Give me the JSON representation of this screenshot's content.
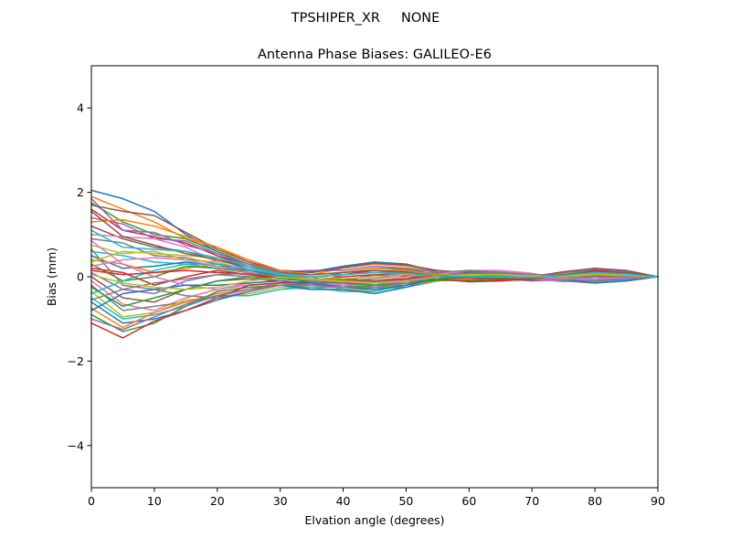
{
  "chart_data": {
    "type": "line",
    "suptitle": "TPSHIPER_XR     NONE",
    "title": "Antenna Phase Biases: GALILEO-E6",
    "xlabel": "Elvation angle (degrees)",
    "ylabel": "Bias (mm)",
    "xlim": [
      0,
      90
    ],
    "ylim": [
      -5,
      5
    ],
    "xticks": [
      0,
      10,
      20,
      30,
      40,
      50,
      60,
      70,
      80,
      90
    ],
    "yticks": [
      -4,
      -2,
      0,
      2,
      4
    ],
    "ytick_labels": [
      "−4",
      "−2",
      "0",
      "2",
      "4"
    ],
    "grid": false,
    "legend": "none",
    "colors": [
      "#1f77b4",
      "#ff7f0e",
      "#2ca02c",
      "#d62728",
      "#9467bd",
      "#8c564b",
      "#e377c2",
      "#7f7f7f",
      "#bcbd22",
      "#17becf"
    ],
    "x": [
      0,
      5,
      10,
      15,
      20,
      25,
      30,
      35,
      40,
      45,
      50,
      55,
      60,
      65,
      70,
      75,
      80,
      85,
      90
    ],
    "series": [
      {
        "values": [
          2.05,
          1.85,
          1.55,
          1.0,
          0.6,
          0.3,
          0.15,
          0.12,
          0.25,
          0.35,
          0.3,
          0.12,
          0.02,
          0.0,
          -0.05,
          0.05,
          0.15,
          0.1,
          0.0
        ]
      },
      {
        "values": [
          1.9,
          1.6,
          1.3,
          0.9,
          0.7,
          0.35,
          0.1,
          0.05,
          0.2,
          0.3,
          0.25,
          0.1,
          0.05,
          0.05,
          0.0,
          0.1,
          0.2,
          0.12,
          0.0
        ]
      },
      {
        "values": [
          1.75,
          1.3,
          1.0,
          0.9,
          0.6,
          0.3,
          0.05,
          -0.05,
          0.1,
          0.2,
          0.18,
          0.05,
          0.0,
          -0.02,
          -0.05,
          0.08,
          0.15,
          0.1,
          0.0
        ]
      },
      {
        "values": [
          1.6,
          1.1,
          0.95,
          0.8,
          0.5,
          0.25,
          0.05,
          0.0,
          0.05,
          0.15,
          0.12,
          0.05,
          0.08,
          0.05,
          0.0,
          -0.05,
          0.05,
          0.05,
          0.0
        ]
      },
      {
        "values": [
          1.4,
          1.25,
          0.9,
          0.85,
          0.55,
          0.3,
          0.1,
          -0.05,
          -0.1,
          0.05,
          0.08,
          0.02,
          0.1,
          0.1,
          0.05,
          0.0,
          0.1,
          0.05,
          0.0
        ]
      },
      {
        "values": [
          1.2,
          0.9,
          0.7,
          0.6,
          0.4,
          0.2,
          0.05,
          -0.05,
          -0.15,
          -0.1,
          0.0,
          0.05,
          0.12,
          0.1,
          0.05,
          -0.05,
          -0.05,
          0.0,
          0.0
        ]
      },
      {
        "values": [
          1.0,
          0.95,
          0.9,
          0.7,
          0.35,
          0.15,
          0.0,
          -0.1,
          -0.2,
          -0.15,
          -0.05,
          0.05,
          0.15,
          0.12,
          0.05,
          -0.08,
          -0.12,
          -0.05,
          0.0
        ]
      },
      {
        "values": [
          0.9,
          0.8,
          0.5,
          0.45,
          0.3,
          0.1,
          -0.05,
          -0.1,
          -0.25,
          -0.25,
          -0.15,
          0.0,
          0.1,
          0.08,
          0.0,
          -0.1,
          -0.15,
          -0.08,
          0.0
        ]
      },
      {
        "values": [
          0.75,
          0.55,
          0.6,
          0.4,
          0.35,
          0.15,
          0.05,
          -0.1,
          -0.3,
          -0.35,
          -0.2,
          -0.05,
          0.05,
          0.05,
          0.0,
          -0.08,
          -0.1,
          -0.05,
          0.0
        ]
      },
      {
        "values": [
          0.6,
          0.5,
          0.35,
          0.3,
          0.2,
          0.1,
          0.0,
          -0.12,
          -0.2,
          -0.3,
          -0.25,
          -0.1,
          0.0,
          0.05,
          0.02,
          -0.05,
          -0.08,
          -0.05,
          0.0
        ]
      },
      {
        "values": [
          0.5,
          0.2,
          0.25,
          0.35,
          0.25,
          0.15,
          0.02,
          -0.08,
          -0.15,
          -0.25,
          -0.2,
          -0.05,
          -0.05,
          0.0,
          0.0,
          0.05,
          0.05,
          0.02,
          0.0
        ]
      },
      {
        "values": [
          0.4,
          0.3,
          0.1,
          0.2,
          0.3,
          0.2,
          0.08,
          -0.05,
          -0.1,
          -0.2,
          -0.15,
          -0.05,
          -0.1,
          -0.05,
          0.0,
          0.08,
          0.1,
          0.05,
          0.0
        ]
      },
      {
        "values": [
          0.3,
          -0.1,
          0.0,
          0.25,
          0.2,
          0.1,
          0.0,
          -0.1,
          -0.05,
          -0.1,
          -0.1,
          0.0,
          -0.08,
          -0.1,
          -0.05,
          0.05,
          0.12,
          0.08,
          0.0
        ]
      },
      {
        "values": [
          0.2,
          0.1,
          -0.2,
          0.0,
          0.15,
          0.05,
          -0.05,
          -0.1,
          0.0,
          0.05,
          0.02,
          0.05,
          -0.05,
          -0.08,
          -0.08,
          0.0,
          0.15,
          0.1,
          0.0
        ]
      },
      {
        "values": [
          0.1,
          -0.3,
          -0.4,
          -0.1,
          0.05,
          0.0,
          -0.1,
          -0.15,
          0.05,
          0.1,
          0.1,
          0.08,
          0.0,
          -0.05,
          -0.1,
          -0.05,
          0.1,
          0.08,
          0.0
        ]
      },
      {
        "values": [
          0.0,
          -0.5,
          -0.6,
          -0.3,
          -0.1,
          -0.05,
          -0.1,
          -0.2,
          -0.05,
          0.0,
          0.05,
          0.1,
          0.05,
          0.0,
          -0.08,
          -0.1,
          0.05,
          0.05,
          0.0
        ]
      },
      {
        "values": [
          -0.1,
          -0.65,
          -0.8,
          -0.5,
          -0.3,
          -0.2,
          -0.15,
          -0.2,
          -0.15,
          -0.1,
          0.0,
          0.12,
          0.1,
          0.05,
          -0.05,
          -0.12,
          -0.05,
          0.0,
          0.0
        ]
      },
      {
        "values": [
          -0.2,
          -0.8,
          -0.7,
          -0.6,
          -0.45,
          -0.3,
          -0.2,
          -0.25,
          -0.25,
          -0.2,
          -0.05,
          0.1,
          0.12,
          0.08,
          0.0,
          -0.1,
          -0.15,
          -0.05,
          0.0
        ]
      },
      {
        "values": [
          -0.35,
          -0.95,
          -0.85,
          -0.55,
          -0.5,
          -0.4,
          -0.25,
          -0.3,
          -0.3,
          -0.3,
          -0.15,
          0.05,
          0.08,
          0.05,
          0.02,
          -0.05,
          -0.15,
          -0.1,
          0.0
        ]
      },
      {
        "values": [
          -0.5,
          -1.0,
          -0.9,
          -0.7,
          -0.45,
          -0.45,
          -0.3,
          -0.25,
          -0.35,
          -0.35,
          -0.2,
          0.0,
          0.05,
          0.05,
          0.05,
          0.0,
          -0.1,
          -0.08,
          0.0
        ]
      },
      {
        "values": [
          -0.6,
          -1.1,
          -1.0,
          -0.8,
          -0.55,
          -0.35,
          -0.2,
          -0.3,
          -0.3,
          -0.4,
          -0.25,
          -0.05,
          0.0,
          0.02,
          0.05,
          0.05,
          -0.05,
          -0.05,
          0.0
        ]
      },
      {
        "values": [
          -0.75,
          -1.2,
          -0.85,
          -0.6,
          -0.4,
          -0.3,
          -0.15,
          -0.2,
          -0.25,
          -0.3,
          -0.2,
          -0.1,
          -0.05,
          0.0,
          0.03,
          0.08,
          0.0,
          -0.02,
          0.0
        ]
      },
      {
        "values": [
          -0.9,
          -1.3,
          -1.1,
          -0.7,
          -0.35,
          -0.25,
          -0.2,
          -0.15,
          -0.2,
          -0.25,
          -0.15,
          -0.08,
          -0.1,
          -0.05,
          0.0,
          0.05,
          0.05,
          0.02,
          0.0
        ]
      },
      {
        "values": [
          -1.1,
          -1.45,
          -1.05,
          -0.8,
          -0.5,
          -0.2,
          -0.15,
          -0.1,
          -0.15,
          -0.2,
          -0.1,
          -0.05,
          -0.12,
          -0.1,
          -0.05,
          0.0,
          0.08,
          0.05,
          0.0
        ]
      },
      {
        "values": [
          1.85,
          1.1,
          1.05,
          0.75,
          0.55,
          0.25,
          0.12,
          0.15,
          0.15,
          0.25,
          0.2,
          0.1,
          0.05,
          0.02,
          -0.02,
          0.1,
          0.18,
          0.12,
          0.0
        ]
      },
      {
        "values": [
          1.7,
          1.55,
          1.45,
          1.05,
          0.65,
          0.35,
          0.15,
          0.1,
          0.22,
          0.32,
          0.28,
          0.15,
          0.1,
          0.05,
          0.0,
          0.12,
          0.2,
          0.15,
          0.0
        ]
      },
      {
        "values": [
          0.85,
          0.3,
          0.0,
          -0.2,
          -0.3,
          -0.15,
          -0.1,
          -0.15,
          -0.2,
          -0.2,
          -0.1,
          0.05,
          0.15,
          0.15,
          0.08,
          -0.05,
          -0.1,
          -0.05,
          0.0
        ]
      },
      {
        "values": [
          0.65,
          -0.2,
          -0.3,
          -0.45,
          -0.5,
          -0.35,
          -0.2,
          -0.2,
          -0.1,
          -0.05,
          0.05,
          0.1,
          0.15,
          0.1,
          0.02,
          -0.08,
          -0.1,
          -0.05,
          0.0
        ]
      },
      {
        "values": [
          0.35,
          0.6,
          0.55,
          0.5,
          0.45,
          0.25,
          0.1,
          0.0,
          -0.05,
          0.0,
          0.05,
          0.05,
          0.02,
          0.0,
          -0.03,
          0.02,
          0.08,
          0.05,
          0.0
        ]
      },
      {
        "values": [
          -0.4,
          -0.1,
          0.15,
          0.3,
          0.3,
          0.2,
          0.05,
          -0.05,
          -0.1,
          -0.15,
          -0.1,
          0.0,
          0.05,
          0.05,
          0.0,
          -0.02,
          0.0,
          0.0,
          0.0
        ]
      },
      {
        "values": [
          -0.8,
          -0.4,
          -0.3,
          -0.2,
          -0.2,
          -0.15,
          -0.1,
          -0.15,
          -0.25,
          -0.3,
          -0.2,
          -0.05,
          0.1,
          0.1,
          0.05,
          -0.05,
          -0.15,
          -0.1,
          0.0
        ]
      },
      {
        "values": [
          1.3,
          1.35,
          1.2,
          0.95,
          0.7,
          0.4,
          0.15,
          0.05,
          0.1,
          0.2,
          0.15,
          0.05,
          0.0,
          0.0,
          -0.02,
          0.05,
          0.1,
          0.08,
          0.0
        ]
      },
      {
        "values": [
          -0.25,
          -0.7,
          -0.5,
          -0.3,
          -0.1,
          0.0,
          -0.05,
          -0.1,
          -0.15,
          -0.2,
          -0.15,
          -0.05,
          0.0,
          0.02,
          0.02,
          0.0,
          -0.05,
          -0.03,
          0.0
        ]
      },
      {
        "values": [
          0.15,
          0.05,
          0.1,
          0.15,
          0.1,
          0.05,
          0.0,
          -0.05,
          -0.08,
          -0.1,
          -0.05,
          0.02,
          0.05,
          0.05,
          0.02,
          0.0,
          0.02,
          0.02,
          0.0
        ]
      },
      {
        "values": [
          -1.0,
          -1.25,
          -0.95,
          -0.65,
          -0.45,
          -0.3,
          -0.2,
          -0.2,
          -0.25,
          -0.25,
          -0.15,
          0.0,
          0.05,
          0.08,
          0.05,
          0.02,
          -0.05,
          -0.05,
          0.0
        ]
      },
      {
        "values": [
          1.55,
          0.95,
          0.75,
          0.55,
          0.4,
          0.25,
          0.1,
          0.05,
          0.1,
          0.15,
          0.1,
          0.02,
          -0.02,
          -0.05,
          -0.05,
          0.05,
          0.12,
          0.1,
          0.0
        ]
      },
      {
        "values": [
          0.25,
          0.4,
          0.45,
          0.4,
          0.25,
          0.1,
          0.0,
          -0.08,
          -0.12,
          -0.15,
          -0.08,
          0.0,
          0.05,
          0.05,
          0.0,
          -0.05,
          -0.05,
          -0.02,
          0.0
        ]
      },
      {
        "values": [
          -0.55,
          -0.3,
          -0.15,
          -0.05,
          0.05,
          0.08,
          0.02,
          -0.05,
          -0.1,
          -0.12,
          -0.08,
          0.0,
          0.08,
          0.1,
          0.05,
          0.0,
          0.0,
          0.0,
          0.0
        ]
      },
      {
        "values": [
          0.05,
          -0.15,
          -0.25,
          -0.3,
          -0.25,
          -0.1,
          -0.02,
          -0.05,
          -0.1,
          -0.15,
          -0.1,
          0.0,
          0.05,
          0.05,
          0.02,
          0.0,
          0.05,
          0.03,
          0.0
        ]
      },
      {
        "values": [
          1.1,
          0.7,
          0.65,
          0.6,
          0.45,
          0.25,
          0.08,
          0.0,
          0.05,
          0.1,
          0.08,
          0.02,
          0.0,
          0.0,
          -0.02,
          0.03,
          0.1,
          0.06,
          0.0
        ]
      }
    ]
  }
}
